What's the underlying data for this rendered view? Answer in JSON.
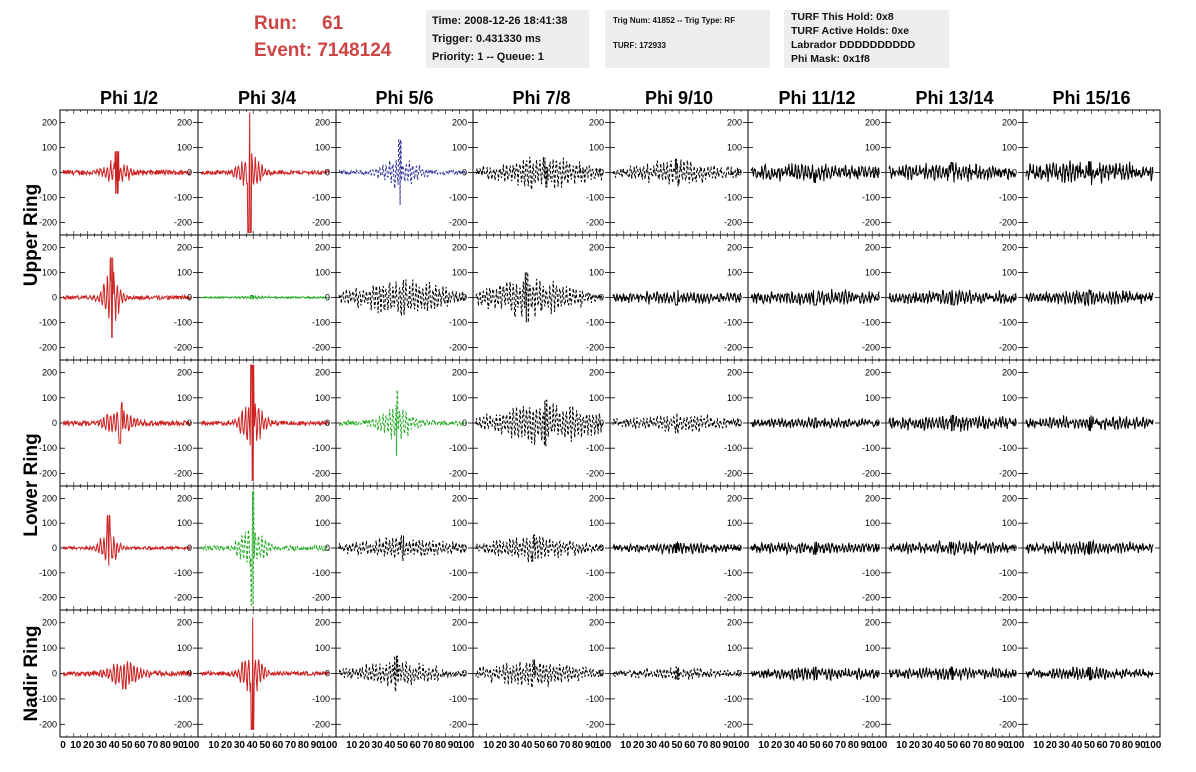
{
  "header": {
    "run_label": "Run:",
    "run_value": "61",
    "event_label": "Event:",
    "event_value": "7148124",
    "box1": [
      "Time: 2008-12-26 18:41:38",
      "Trigger: 0.431330 ms",
      "Priority: 1 -- Queue: 1"
    ],
    "box2": [
      "Trig Num: 41852 -- Trig Type: RF",
      "TURF: 172933"
    ],
    "box3": [
      "TURF This Hold: 0x8",
      "TURF Active Holds: 0xe",
      "Labrador DDDDDDDDDD",
      "Phi Mask: 0x1f8"
    ]
  },
  "colors": {
    "header_red": "#cc4444",
    "box_bg": "#eeeeee",
    "red_trace": "#cc2222",
    "green_trace": "#22aa22",
    "blue_trace": "#333399",
    "black_trace": "#000000"
  },
  "chart_data": {
    "type": "line",
    "columns": [
      "Phi 1/2",
      "Phi 3/4",
      "Phi 5/6",
      "Phi 7/8",
      "Phi 9/10",
      "Phi 11/12",
      "Phi 13/14",
      "Phi 15/16"
    ],
    "rows": [
      "Upper Ring",
      "Upper Ring",
      "Lower Ring",
      "Lower Ring",
      "Nadir Ring"
    ],
    "row_labels": [
      {
        "text": "Upper Ring",
        "spans": [
          0,
          1
        ]
      },
      {
        "text": "Lower Ring",
        "spans": [
          2,
          3
        ]
      },
      {
        "text": "Nadir Ring",
        "spans": [
          4,
          4
        ]
      }
    ],
    "xlim": [
      0,
      100
    ],
    "ylim": [
      -250,
      250
    ],
    "yticks": [
      200,
      100,
      0,
      -100,
      -200
    ],
    "xticks": [
      0,
      10,
      20,
      30,
      40,
      50,
      60,
      70,
      80,
      90,
      100
    ],
    "x_tick_label_sequence": [
      "0",
      "10",
      "20",
      "30",
      "40",
      "50",
      "60",
      "70",
      "80",
      "90",
      "100"
    ],
    "panels": [
      [
        {
          "color": "red",
          "style": "solid",
          "amp": 45,
          "burst_center": 42,
          "burst_width": 10,
          "noise": 10,
          "peak": 85
        },
        {
          "color": "red",
          "style": "solid",
          "amp": 60,
          "burst_center": 38,
          "burst_width": 10,
          "noise": 8,
          "peak": 240
        },
        {
          "color": "blue",
          "style": "dashed",
          "amp": 50,
          "burst_center": 48,
          "burst_width": 16,
          "noise": 8,
          "peak": 130
        },
        {
          "color": "black",
          "style": "dashed",
          "amp": 45,
          "burst_center": 55,
          "burst_width": 40,
          "noise": 15,
          "peak": 60
        },
        {
          "color": "black",
          "style": "dashed",
          "amp": 35,
          "burst_center": 50,
          "burst_width": 35,
          "noise": 15,
          "peak": 55
        },
        {
          "color": "black",
          "style": "solid",
          "amp": 20,
          "burst_center": 50,
          "burst_width": 60,
          "noise": 18,
          "peak": 40
        },
        {
          "color": "black",
          "style": "solid",
          "amp": 20,
          "burst_center": 50,
          "burst_width": 60,
          "noise": 18,
          "peak": 40
        },
        {
          "color": "black",
          "style": "solid",
          "amp": 25,
          "burst_center": 50,
          "burst_width": 60,
          "noise": 22,
          "peak": 45
        }
      ],
      [
        {
          "color": "red",
          "style": "solid",
          "amp": 80,
          "burst_center": 38,
          "burst_width": 8,
          "noise": 8,
          "peak": 160
        },
        {
          "color": "green",
          "style": "solid",
          "amp": 4,
          "burst_center": 40,
          "burst_width": 20,
          "noise": 3,
          "peak": 8
        },
        {
          "color": "black",
          "style": "dashed",
          "amp": 45,
          "burst_center": 50,
          "burst_width": 45,
          "noise": 15,
          "peak": 70
        },
        {
          "color": "black",
          "style": "dashed",
          "amp": 55,
          "burst_center": 40,
          "burst_width": 40,
          "noise": 15,
          "peak": 100
        },
        {
          "color": "black",
          "style": "solid",
          "amp": 15,
          "burst_center": 50,
          "burst_width": 60,
          "noise": 12,
          "peak": 30
        },
        {
          "color": "black",
          "style": "solid",
          "amp": 18,
          "burst_center": 50,
          "burst_width": 60,
          "noise": 14,
          "peak": 30
        },
        {
          "color": "black",
          "style": "solid",
          "amp": 18,
          "burst_center": 50,
          "burst_width": 60,
          "noise": 14,
          "peak": 30
        },
        {
          "color": "black",
          "style": "solid",
          "amp": 18,
          "burst_center": 50,
          "burst_width": 60,
          "noise": 14,
          "peak": 30
        }
      ],
      [
        {
          "color": "red",
          "style": "solid",
          "amp": 45,
          "burst_center": 45,
          "burst_width": 12,
          "noise": 10,
          "peak": 80
        },
        {
          "color": "red",
          "style": "solid",
          "amp": 75,
          "burst_center": 40,
          "burst_width": 10,
          "noise": 8,
          "peak": 230
        },
        {
          "color": "green",
          "style": "dashed",
          "amp": 50,
          "burst_center": 45,
          "burst_width": 15,
          "noise": 10,
          "peak": 130
        },
        {
          "color": "black",
          "style": "dashed",
          "amp": 60,
          "burst_center": 55,
          "burst_width": 45,
          "noise": 15,
          "peak": 90
        },
        {
          "color": "black",
          "style": "dashed",
          "amp": 25,
          "burst_center": 50,
          "burst_width": 40,
          "noise": 12,
          "peak": 40
        },
        {
          "color": "black",
          "style": "solid",
          "amp": 12,
          "burst_center": 50,
          "burst_width": 60,
          "noise": 10,
          "peak": 20
        },
        {
          "color": "black",
          "style": "solid",
          "amp": 18,
          "burst_center": 50,
          "burst_width": 60,
          "noise": 14,
          "peak": 30
        },
        {
          "color": "black",
          "style": "solid",
          "amp": 16,
          "burst_center": 50,
          "burst_width": 60,
          "noise": 13,
          "peak": 30
        }
      ],
      [
        {
          "color": "red",
          "style": "solid",
          "amp": 55,
          "burst_center": 36,
          "burst_width": 8,
          "noise": 6,
          "peak": 130
        },
        {
          "color": "green",
          "style": "dashed",
          "amp": 70,
          "burst_center": 40,
          "burst_width": 12,
          "noise": 10,
          "peak": 230
        },
        {
          "color": "black",
          "style": "dashed",
          "amp": 30,
          "burst_center": 50,
          "burst_width": 45,
          "noise": 12,
          "peak": 50
        },
        {
          "color": "black",
          "style": "dashed",
          "amp": 35,
          "burst_center": 45,
          "burst_width": 40,
          "noise": 12,
          "peak": 55
        },
        {
          "color": "black",
          "style": "solid",
          "amp": 12,
          "burst_center": 50,
          "burst_width": 60,
          "noise": 10,
          "peak": 20
        },
        {
          "color": "black",
          "style": "solid",
          "amp": 14,
          "burst_center": 50,
          "burst_width": 60,
          "noise": 12,
          "peak": 25
        },
        {
          "color": "black",
          "style": "solid",
          "amp": 16,
          "burst_center": 50,
          "burst_width": 60,
          "noise": 12,
          "peak": 25
        },
        {
          "color": "black",
          "style": "solid",
          "amp": 16,
          "burst_center": 50,
          "burst_width": 60,
          "noise": 12,
          "peak": 25
        }
      ],
      [
        {
          "color": "red",
          "style": "solid",
          "amp": 40,
          "burst_center": 48,
          "burst_width": 14,
          "noise": 10,
          "peak": 60
        },
        {
          "color": "red",
          "style": "solid",
          "amp": 75,
          "burst_center": 40,
          "burst_width": 9,
          "noise": 8,
          "peak": 220
        },
        {
          "color": "black",
          "style": "dashed",
          "amp": 35,
          "burst_center": 45,
          "burst_width": 35,
          "noise": 12,
          "peak": 70
        },
        {
          "color": "black",
          "style": "dashed",
          "amp": 35,
          "burst_center": 45,
          "burst_width": 45,
          "noise": 12,
          "peak": 55
        },
        {
          "color": "black",
          "style": "dashed",
          "amp": 15,
          "burst_center": 50,
          "burst_width": 40,
          "noise": 10,
          "peak": 25
        },
        {
          "color": "black",
          "style": "solid",
          "amp": 14,
          "burst_center": 50,
          "burst_width": 60,
          "noise": 12,
          "peak": 25
        },
        {
          "color": "black",
          "style": "solid",
          "amp": 14,
          "burst_center": 50,
          "burst_width": 60,
          "noise": 12,
          "peak": 25
        },
        {
          "color": "black",
          "style": "solid",
          "amp": 14,
          "burst_center": 50,
          "burst_width": 60,
          "noise": 12,
          "peak": 25
        }
      ]
    ]
  }
}
